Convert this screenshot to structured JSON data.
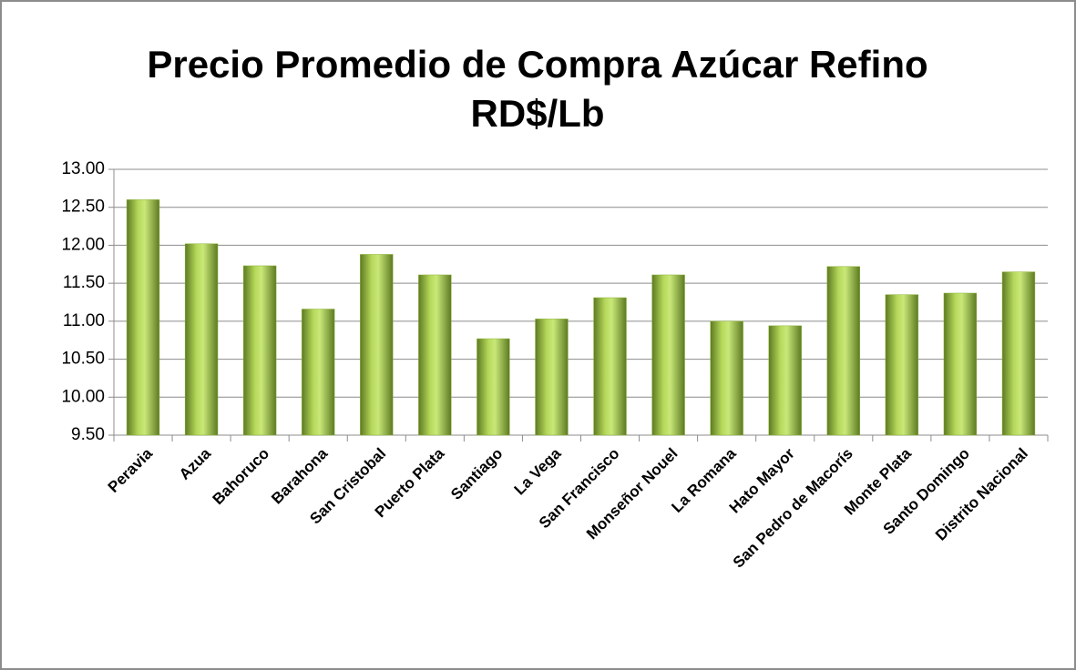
{
  "chart_data": {
    "type": "bar",
    "title": "Precio Promedio de Compra Azúcar Refino",
    "subtitle": "RD$/Lb",
    "categories": [
      "Peravia",
      "Azua",
      "Bahoruco",
      "Barahona",
      "San Cristobal",
      "Puerto Plata",
      "Santiago",
      "La Vega",
      "San Francisco",
      "Monseñor Nouel",
      "La Romana",
      "Hato Mayor",
      "San Pedro de Macorís",
      "Monte Plata",
      "Santo Domingo",
      "Distrito Nacional"
    ],
    "values": [
      12.6,
      12.02,
      11.73,
      11.16,
      11.88,
      11.61,
      10.77,
      11.03,
      11.31,
      11.61,
      11.0,
      10.94,
      11.72,
      11.35,
      11.37,
      11.65
    ],
    "color": "#8db33a",
    "ylim": [
      9.5,
      13
    ],
    "yticks": [
      {
        "value": 9.5,
        "label": "9.50"
      },
      {
        "value": 10,
        "label": "10.00"
      },
      {
        "value": 10.5,
        "label": "10.50"
      },
      {
        "value": 11,
        "label": "11.00"
      },
      {
        "value": 11.5,
        "label": "11.50"
      },
      {
        "value": 12,
        "label": "12.00"
      },
      {
        "value": 12.5,
        "label": "12.50"
      },
      {
        "value": 13,
        "label": "13.00"
      }
    ],
    "grid": true
  }
}
